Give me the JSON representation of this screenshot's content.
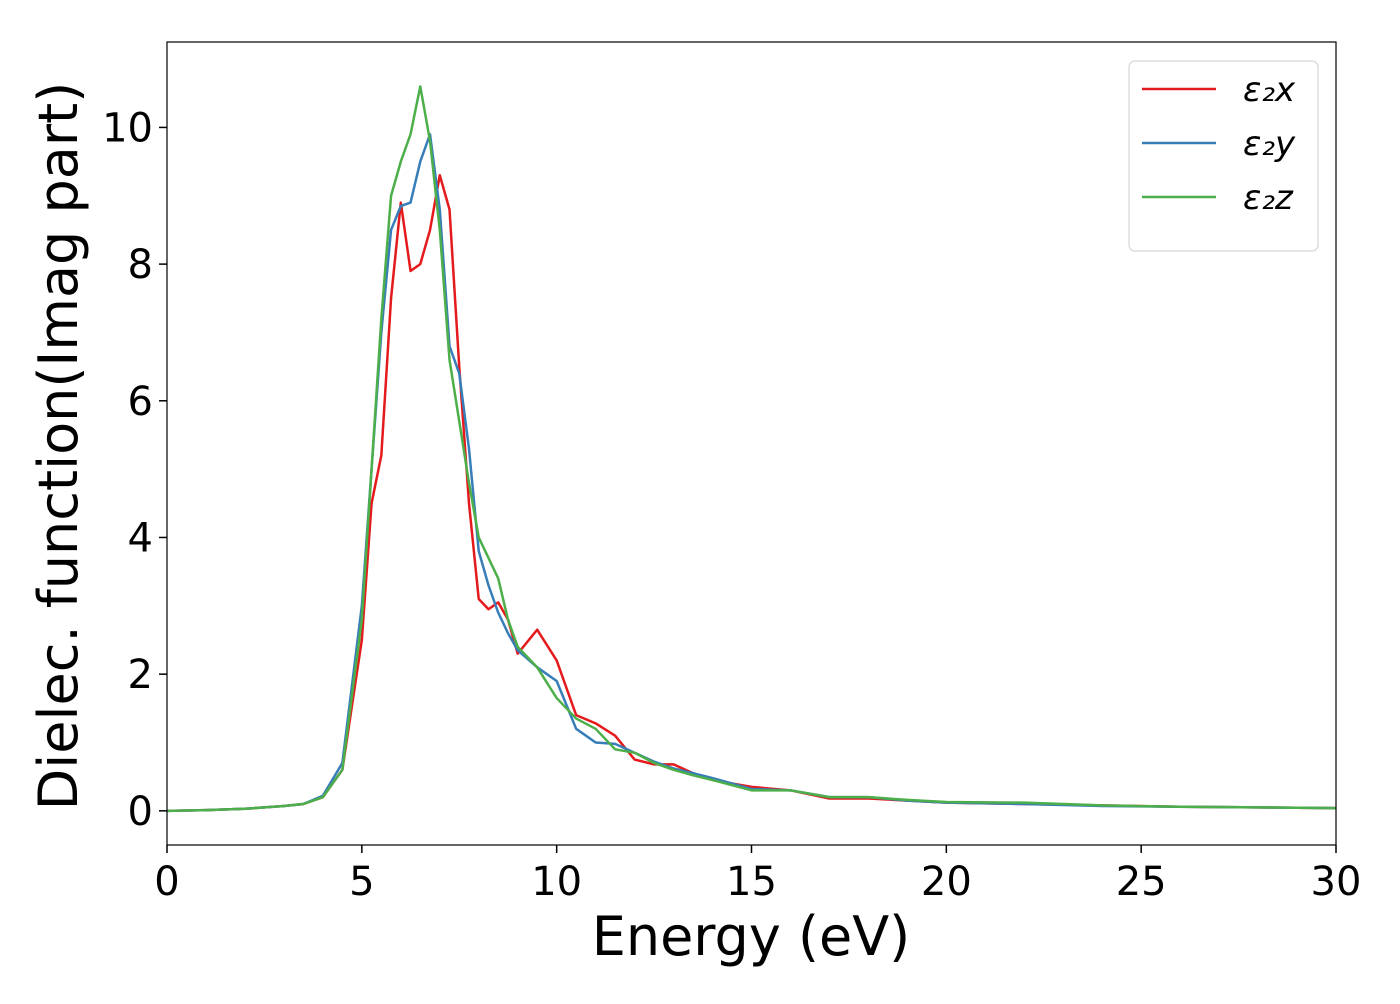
{
  "chart_data": {
    "type": "line",
    "xlabel": "Energy (eV)",
    "ylabel": "Dielec. function(Imag part)",
    "x": [
      0,
      1,
      2,
      3,
      3.5,
      4,
      4.5,
      5,
      5.25,
      5.5,
      5.75,
      6,
      6.25,
      6.5,
      6.75,
      7,
      7.25,
      7.5,
      7.75,
      8,
      8.25,
      8.5,
      8.75,
      9,
      9.5,
      10,
      10.5,
      11,
      11.5,
      12,
      12.5,
      13,
      13.5,
      14,
      15,
      16,
      17,
      18,
      19,
      20,
      22,
      24,
      26,
      28,
      30
    ],
    "series": [
      {
        "name": "ε₂x",
        "color": "#e41a1c",
        "values": [
          0,
          0.01,
          0.03,
          0.07,
          0.1,
          0.2,
          0.6,
          2.5,
          4.5,
          5.2,
          7.5,
          8.9,
          7.9,
          8.0,
          8.5,
          9.3,
          8.8,
          6.5,
          4.5,
          3.1,
          2.95,
          3.05,
          2.8,
          2.3,
          2.65,
          2.2,
          1.4,
          1.28,
          1.1,
          0.75,
          0.68,
          0.68,
          0.55,
          0.45,
          0.35,
          0.3,
          0.18,
          0.18,
          0.15,
          0.12,
          0.1,
          0.08,
          0.06,
          0.05,
          0.04
        ]
      },
      {
        "name": "ε₂y",
        "color": "#377eb8",
        "values": [
          0,
          0.01,
          0.03,
          0.07,
          0.1,
          0.22,
          0.7,
          3.0,
          5.0,
          7.0,
          8.5,
          8.85,
          8.9,
          9.5,
          9.9,
          8.8,
          6.8,
          6.4,
          5.3,
          3.8,
          3.3,
          2.9,
          2.6,
          2.35,
          2.1,
          1.9,
          1.2,
          1.0,
          0.98,
          0.85,
          0.72,
          0.62,
          0.55,
          0.48,
          0.32,
          0.3,
          0.2,
          0.2,
          0.15,
          0.12,
          0.1,
          0.07,
          0.06,
          0.05,
          0.04
        ]
      },
      {
        "name": "ε₂z",
        "color": "#4daf4a",
        "values": [
          0,
          0.01,
          0.03,
          0.07,
          0.1,
          0.2,
          0.6,
          2.8,
          5.0,
          7.2,
          9.0,
          9.5,
          9.9,
          10.6,
          9.8,
          8.5,
          6.6,
          5.7,
          4.8,
          4.0,
          3.7,
          3.4,
          2.8,
          2.4,
          2.1,
          1.65,
          1.35,
          1.2,
          0.9,
          0.85,
          0.7,
          0.6,
          0.52,
          0.45,
          0.3,
          0.3,
          0.2,
          0.2,
          0.16,
          0.13,
          0.12,
          0.08,
          0.06,
          0.05,
          0.04
        ]
      }
    ],
    "xlim": [
      0,
      30
    ],
    "xticks": [
      0,
      5,
      10,
      15,
      20,
      25,
      30
    ],
    "ylim": [
      -0.5,
      11.25
    ],
    "yticks": [
      0,
      2,
      4,
      6,
      8,
      10
    ],
    "grid": false,
    "legend": "upper right"
  }
}
